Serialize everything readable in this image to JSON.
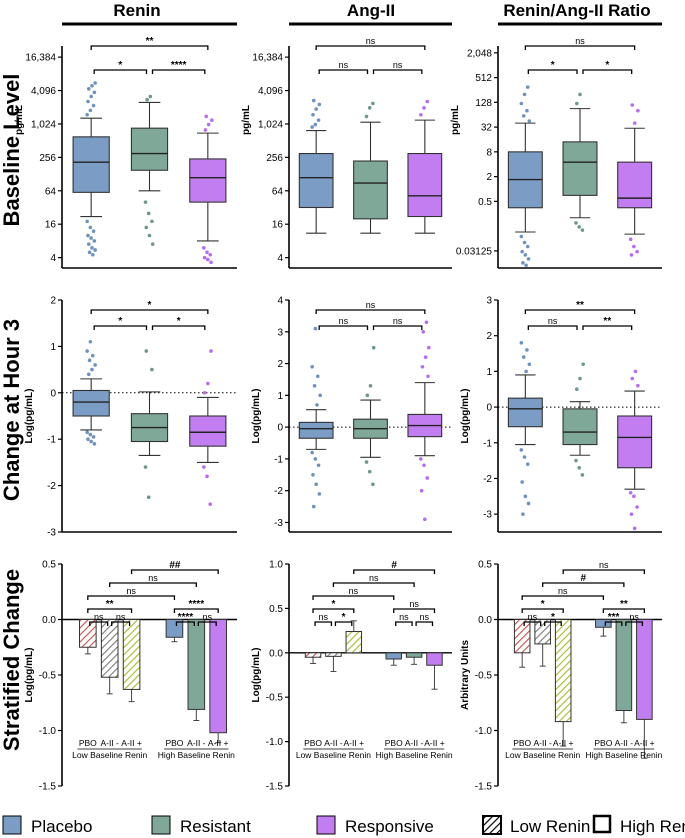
{
  "column_titles": [
    "Renin",
    "Ang-II",
    "Renin/Ang-II Ratio"
  ],
  "row_titles": [
    "Baseline Level",
    "Change at Hour 3",
    "Stratified Change"
  ],
  "colors": {
    "placebo": "#7b9cc4",
    "resistant": "#7fa898",
    "responsive": "#c27ef0",
    "low_renin_stripe": "#c0504d",
    "low_renin_stripe_alt": "#a5b830",
    "line": "#000000",
    "dot_placebo": "#6f92bd",
    "dot_resistant": "#6e9886",
    "dot_responsive": "#b76cf0"
  },
  "legend": [
    {
      "label": "Placebo",
      "style": "placebo"
    },
    {
      "label": "Resistant",
      "style": "resistant"
    },
    {
      "label": "Responsive",
      "style": "responsive"
    },
    {
      "label": "Low Renin",
      "style": "hatch"
    },
    {
      "label": "High Renin",
      "style": "open"
    }
  ],
  "chart_data": [
    {
      "id": "baseline-renin",
      "type": "box",
      "title": "Renin",
      "ylabel": "pg/mL",
      "scale": "log2",
      "ylim": [
        2.6,
        26000
      ],
      "yticks": [
        4,
        16,
        64,
        256,
        1024,
        4096,
        16384
      ],
      "ytick_labels": [
        "4",
        "16",
        "64",
        "256",
        "1,024",
        "4,096",
        "16,384"
      ],
      "groups": [
        {
          "name": "Placebo",
          "whislo": 22,
          "q1": 60,
          "med": 210,
          "q3": 600,
          "whishi": 1300,
          "fliers": [
            18,
            14,
            12,
            10,
            9,
            8,
            7,
            6,
            5.5,
            5,
            4.5,
            1500,
            1800,
            2200,
            2600,
            3200,
            3800,
            4400,
            5000,
            5600
          ]
        },
        {
          "name": "Resistant",
          "whislo": 64,
          "q1": 150,
          "med": 300,
          "q3": 860,
          "whishi": 2500,
          "fliers": [
            40,
            25,
            18,
            14,
            10,
            7,
            2800,
            3200
          ]
        },
        {
          "name": "Responsive",
          "whislo": 8,
          "q1": 40,
          "med": 110,
          "q3": 240,
          "whishi": 700,
          "fliers": [
            6,
            5,
            4.5,
            4,
            3.7,
            3.3,
            800,
            1000,
            1200,
            1400
          ]
        }
      ],
      "brackets": [
        {
          "from": 0,
          "to": 1,
          "level": 1,
          "label": "*"
        },
        {
          "from": 1,
          "to": 2,
          "level": 1,
          "label": "****"
        },
        {
          "from": 0,
          "to": 2,
          "level": 2,
          "label": "**"
        }
      ]
    },
    {
      "id": "baseline-angii",
      "type": "box",
      "title": "Ang-II",
      "ylabel": "pg/mL",
      "scale": "log2",
      "ylim": [
        2.6,
        26000
      ],
      "yticks": [
        4,
        16,
        64,
        256,
        1024,
        4096,
        16384
      ],
      "ytick_labels": [
        "4",
        "16",
        "64",
        "256",
        "1,024",
        "4,096",
        "16,384"
      ],
      "groups": [
        {
          "name": "Placebo",
          "whislo": 11,
          "q1": 32,
          "med": 110,
          "q3": 300,
          "whishi": 780,
          "fliers": [
            900,
            1000,
            1200,
            1500,
            1900,
            2300,
            2700
          ]
        },
        {
          "name": "Resistant",
          "whislo": 11,
          "q1": 20,
          "med": 88,
          "q3": 220,
          "whishi": 1100,
          "fliers": [
            1400,
            2000,
            2400
          ]
        },
        {
          "name": "Responsive",
          "whislo": 11,
          "q1": 22,
          "med": 52,
          "q3": 300,
          "whishi": 1200,
          "fliers": [
            1500,
            2000,
            2600
          ]
        }
      ],
      "brackets": [
        {
          "from": 0,
          "to": 1,
          "level": 1,
          "label": "ns"
        },
        {
          "from": 1,
          "to": 2,
          "level": 1,
          "label": "ns"
        },
        {
          "from": 0,
          "to": 2,
          "level": 2,
          "label": "ns"
        }
      ]
    },
    {
      "id": "baseline-ratio",
      "type": "box",
      "title": "Renin/Ang-II Ratio",
      "ylabel": "pg/mL",
      "scale": "log2",
      "ylim": [
        0.012,
        3000
      ],
      "yticks": [
        0.03125,
        0.5,
        2,
        8,
        32,
        128,
        512,
        2048
      ],
      "ytick_labels": [
        "0.03125",
        "0.5",
        "2",
        "8",
        "32",
        "128",
        "512",
        "2,048"
      ],
      "groups": [
        {
          "name": "Placebo",
          "whislo": 0.09,
          "q1": 0.35,
          "med": 1.7,
          "q3": 8,
          "whishi": 40,
          "fliers": [
            0.07,
            0.05,
            0.04,
            0.03,
            0.025,
            0.02,
            0.016,
            0.014,
            45,
            60,
            80,
            120,
            200,
            300
          ]
        },
        {
          "name": "Resistant",
          "whislo": 0.2,
          "q1": 0.7,
          "med": 4.5,
          "q3": 14,
          "whishi": 90,
          "fliers": [
            0.15,
            0.12,
            0.1,
            120,
            200
          ]
        },
        {
          "name": "Responsive",
          "whislo": 0.08,
          "q1": 0.35,
          "med": 0.6,
          "q3": 4.5,
          "whishi": 30,
          "fliers": [
            0.06,
            0.04,
            0.03,
            0.025,
            40,
            80,
            110
          ]
        }
      ],
      "brackets": [
        {
          "from": 0,
          "to": 1,
          "level": 1,
          "label": "*"
        },
        {
          "from": 1,
          "to": 2,
          "level": 1,
          "label": "*"
        },
        {
          "from": 0,
          "to": 2,
          "level": 2,
          "label": "ns"
        }
      ]
    },
    {
      "id": "change-renin",
      "type": "box",
      "title": "Renin",
      "ylabel": "Log(pg/mL)",
      "scale": "linear",
      "ylim": [
        -3,
        2
      ],
      "yticks": [
        -3,
        -2,
        -1,
        0,
        1,
        2
      ],
      "ytick_labels": [
        "-3",
        "-2",
        "-1",
        "0",
        "1",
        "2"
      ],
      "refline": 0,
      "groups": [
        {
          "name": "Placebo",
          "whislo": -0.8,
          "q1": -0.5,
          "med": -0.2,
          "q3": 0.05,
          "whishi": 0.3,
          "fliers": [
            -0.85,
            -0.9,
            -0.95,
            -1.0,
            -1.05,
            -1.1,
            0.4,
            0.5,
            0.6,
            0.7,
            0.8,
            0.9,
            1.1
          ]
        },
        {
          "name": "Resistant",
          "whislo": -1.35,
          "q1": -1.05,
          "med": -0.75,
          "q3": -0.45,
          "whishi": 0.02,
          "fliers": [
            -1.6,
            -2.25,
            0.5,
            0.9
          ]
        },
        {
          "name": "Responsive",
          "whislo": -1.5,
          "q1": -1.15,
          "med": -0.85,
          "q3": -0.5,
          "whishi": -0.1,
          "fliers": [
            -1.6,
            -1.8,
            -2.4,
            0.0,
            0.2,
            0.9
          ]
        }
      ],
      "brackets": [
        {
          "from": 0,
          "to": 1,
          "level": 1,
          "label": "*"
        },
        {
          "from": 1,
          "to": 2,
          "level": 1,
          "label": "*"
        },
        {
          "from": 0,
          "to": 2,
          "level": 2,
          "label": "*"
        }
      ]
    },
    {
      "id": "change-angii",
      "type": "box",
      "title": "Ang-II",
      "ylabel": "Log(pg/mL)",
      "scale": "linear",
      "ylim": [
        -3.3,
        4
      ],
      "yticks": [
        -3,
        -2,
        -1,
        0,
        1,
        2,
        3,
        4
      ],
      "ytick_labels": [
        "-3",
        "-2",
        "-1",
        "0",
        "1",
        "2",
        "3",
        "4"
      ],
      "refline": 0,
      "groups": [
        {
          "name": "Placebo",
          "whislo": -0.7,
          "q1": -0.35,
          "med": -0.05,
          "q3": 0.15,
          "whishi": 0.55,
          "fliers": [
            -0.8,
            -1.0,
            -1.2,
            -1.5,
            -1.8,
            -2.1,
            -2.5,
            0.7,
            1.0,
            1.3,
            1.6,
            1.9,
            3.1
          ]
        },
        {
          "name": "Resistant",
          "whislo": -0.95,
          "q1": -0.35,
          "med": -0.05,
          "q3": 0.25,
          "whishi": 0.85,
          "fliers": [
            -1.1,
            -1.4,
            -1.8,
            1.0,
            1.3,
            2.5
          ]
        },
        {
          "name": "Responsive",
          "whislo": -0.9,
          "q1": -0.3,
          "med": 0.05,
          "q3": 0.4,
          "whishi": 1.4,
          "fliers": [
            -1.0,
            -1.2,
            -1.6,
            -2.0,
            -2.9,
            1.6,
            1.9,
            2.2,
            2.5,
            3.0,
            3.3
          ]
        }
      ],
      "brackets": [
        {
          "from": 0,
          "to": 1,
          "level": 1,
          "label": "ns"
        },
        {
          "from": 1,
          "to": 2,
          "level": 1,
          "label": "ns"
        },
        {
          "from": 0,
          "to": 2,
          "level": 2,
          "label": "ns"
        }
      ]
    },
    {
      "id": "change-ratio",
      "type": "box",
      "title": "Renin/Ang-II Ratio",
      "ylabel": "Log(pg/mL)",
      "scale": "linear",
      "ylim": [
        -3.5,
        3
      ],
      "yticks": [
        -3,
        -2,
        -1,
        0,
        1,
        2,
        3
      ],
      "ytick_labels": [
        "-3",
        "-2",
        "-1",
        "0",
        "1",
        "2",
        "3"
      ],
      "refline": 0,
      "groups": [
        {
          "name": "Placebo",
          "whislo": -1.05,
          "q1": -0.55,
          "med": -0.05,
          "q3": 0.25,
          "whishi": 0.9,
          "fliers": [
            -1.2,
            -1.4,
            -1.6,
            -2.1,
            -2.5,
            -2.7,
            -3.0,
            1.0,
            1.2,
            1.4,
            1.6,
            1.8
          ]
        },
        {
          "name": "Resistant",
          "whislo": -1.35,
          "q1": -1.05,
          "med": -0.7,
          "q3": -0.05,
          "whishi": 0.15,
          "fliers": [
            -1.5,
            -1.7,
            -1.9,
            0.5,
            0.8,
            1.2
          ]
        },
        {
          "name": "Responsive",
          "whislo": -2.3,
          "q1": -1.7,
          "med": -0.85,
          "q3": -0.25,
          "whishi": 0.45,
          "fliers": [
            -2.4,
            -2.5,
            -2.8,
            -3.0,
            -3.4,
            0.6,
            0.8,
            1.0
          ]
        }
      ],
      "brackets": [
        {
          "from": 0,
          "to": 1,
          "level": 1,
          "label": "ns"
        },
        {
          "from": 1,
          "to": 2,
          "level": 1,
          "label": "**"
        },
        {
          "from": 0,
          "to": 2,
          "level": 2,
          "label": "**"
        }
      ]
    },
    {
      "id": "strat-renin",
      "type": "bar",
      "title": "Renin",
      "ylabel": "Log(pg/mL)",
      "ylim": [
        -1.5,
        0.5
      ],
      "yticks": [
        -1.5,
        -1.0,
        -0.5,
        0.0,
        0.5
      ],
      "ytick_labels": [
        "-1.5",
        "-1.0",
        "-0.5",
        "0.0",
        "0.5"
      ],
      "bars": [
        {
          "label": "PBO",
          "stratum": "Low Baseline Renin",
          "group": "Placebo",
          "value": -0.25,
          "err": 0.06
        },
        {
          "label": "A-II -",
          "stratum": "Low Baseline Renin",
          "group": "Resistant",
          "value": -0.52,
          "err": 0.15
        },
        {
          "label": "A-II +",
          "stratum": "Low Baseline Renin",
          "group": "Responsive",
          "value": -0.63,
          "err": 0.11
        },
        {
          "label": "PBO",
          "stratum": "High Baseline Renin",
          "group": "Placebo",
          "value": -0.16,
          "err": 0.04
        },
        {
          "label": "A-II -",
          "stratum": "High Baseline Renin",
          "group": "Resistant",
          "value": -0.81,
          "err": 0.1
        },
        {
          "label": "A-II +",
          "stratum": "High Baseline Renin",
          "group": "Responsive",
          "value": -1.02,
          "err": 0.09
        }
      ],
      "strata": [
        "Low Baseline Renin",
        "High Baseline Renin"
      ],
      "brackets": [
        {
          "from": 0,
          "to": 1,
          "level": 1,
          "label": "ns"
        },
        {
          "from": 1,
          "to": 2,
          "level": 1,
          "label": "ns"
        },
        {
          "from": 3,
          "to": 4,
          "level": 1,
          "label": "****"
        },
        {
          "from": 4,
          "to": 5,
          "level": 1,
          "label": "ns"
        },
        {
          "from": 0,
          "to": 2,
          "level": 2,
          "label": "**"
        },
        {
          "from": 3,
          "to": 5,
          "level": 2,
          "label": "****"
        },
        {
          "from": 0,
          "to": 3,
          "level": 3,
          "label": "ns"
        },
        {
          "from": 1,
          "to": 4,
          "level": 4,
          "label": "ns"
        },
        {
          "from": 2,
          "to": 5,
          "level": 5,
          "label": "##"
        }
      ]
    },
    {
      "id": "strat-angii",
      "type": "bar",
      "title": "Ang-II",
      "ylabel": "Log(pg/mL)",
      "ylim": [
        -1.5,
        1.0
      ],
      "yticks": [
        -1.5,
        -1.0,
        -0.5,
        0.0,
        0.5,
        1.0
      ],
      "ytick_labels": [
        "-1.5",
        "-1.0",
        "-0.5",
        "0.0",
        "0.5",
        "1.0"
      ],
      "bars": [
        {
          "label": "PBO",
          "stratum": "Low Baseline Renin",
          "group": "Placebo",
          "value": -0.05,
          "err": 0.07
        },
        {
          "label": "A-II -",
          "stratum": "Low Baseline Renin",
          "group": "Resistant",
          "value": -0.04,
          "err": 0.17
        },
        {
          "label": "A-II +",
          "stratum": "Low Baseline Renin",
          "group": "Responsive",
          "value": 0.24,
          "err": 0.12
        },
        {
          "label": "PBO",
          "stratum": "High Baseline Renin",
          "group": "Placebo",
          "value": -0.07,
          "err": 0.07
        },
        {
          "label": "A-II -",
          "stratum": "High Baseline Renin",
          "group": "Resistant",
          "value": -0.05,
          "err": 0.08
        },
        {
          "label": "A-II +",
          "stratum": "High Baseline Renin",
          "group": "Responsive",
          "value": -0.14,
          "err": 0.27
        }
      ],
      "strata": [
        "Low Baseline Renin",
        "High Baseline Renin"
      ],
      "brackets": [
        {
          "from": 0,
          "to": 1,
          "level": 1,
          "label": "ns"
        },
        {
          "from": 1,
          "to": 2,
          "level": 1,
          "label": "*"
        },
        {
          "from": 3,
          "to": 4,
          "level": 1,
          "label": "ns"
        },
        {
          "from": 4,
          "to": 5,
          "level": 1,
          "label": "ns"
        },
        {
          "from": 0,
          "to": 2,
          "level": 2,
          "label": "*"
        },
        {
          "from": 3,
          "to": 5,
          "level": 2,
          "label": "ns"
        },
        {
          "from": 0,
          "to": 3,
          "level": 3,
          "label": "ns"
        },
        {
          "from": 1,
          "to": 4,
          "level": 4,
          "label": "ns"
        },
        {
          "from": 2,
          "to": 5,
          "level": 5,
          "label": "#"
        }
      ]
    },
    {
      "id": "strat-ratio",
      "type": "bar",
      "title": "Renin/Ang-II Ratio",
      "ylabel": "Arbitrary Units",
      "ylim": [
        -1.5,
        0.5
      ],
      "yticks": [
        -1.5,
        -1.0,
        -0.5,
        0.0,
        0.5
      ],
      "ytick_labels": [
        "-1.5",
        "-1.0",
        "-0.5",
        "0.0",
        "0.5"
      ],
      "bars": [
        {
          "label": "PBO",
          "stratum": "Low Baseline Renin",
          "group": "Placebo",
          "value": -0.3,
          "err": 0.13
        },
        {
          "label": "A-II -",
          "stratum": "Low Baseline Renin",
          "group": "Resistant",
          "value": -0.22,
          "err": 0.2
        },
        {
          "label": "A-II +",
          "stratum": "Low Baseline Renin",
          "group": "Responsive",
          "value": -0.92,
          "err": 0.22
        },
        {
          "label": "PBO",
          "stratum": "High Baseline Renin",
          "group": "Placebo",
          "value": -0.07,
          "err": 0.08
        },
        {
          "label": "A-II -",
          "stratum": "High Baseline Renin",
          "group": "Resistant",
          "value": -0.82,
          "err": 0.11
        },
        {
          "label": "A-II +",
          "stratum": "High Baseline Renin",
          "group": "Responsive",
          "value": -0.9,
          "err": 0.35
        }
      ],
      "strata": [
        "Low Baseline Renin",
        "High Baseline Renin"
      ],
      "brackets": [
        {
          "from": 0,
          "to": 1,
          "level": 1,
          "label": "ns"
        },
        {
          "from": 1,
          "to": 2,
          "level": 1,
          "label": "*"
        },
        {
          "from": 3,
          "to": 4,
          "level": 1,
          "label": "***"
        },
        {
          "from": 4,
          "to": 5,
          "level": 1,
          "label": "ns"
        },
        {
          "from": 0,
          "to": 2,
          "level": 2,
          "label": "*"
        },
        {
          "from": 3,
          "to": 5,
          "level": 2,
          "label": "**"
        },
        {
          "from": 0,
          "to": 3,
          "level": 3,
          "label": "ns"
        },
        {
          "from": 1,
          "to": 4,
          "level": 4,
          "label": "#"
        },
        {
          "from": 2,
          "to": 5,
          "level": 5,
          "label": "ns"
        }
      ]
    }
  ]
}
